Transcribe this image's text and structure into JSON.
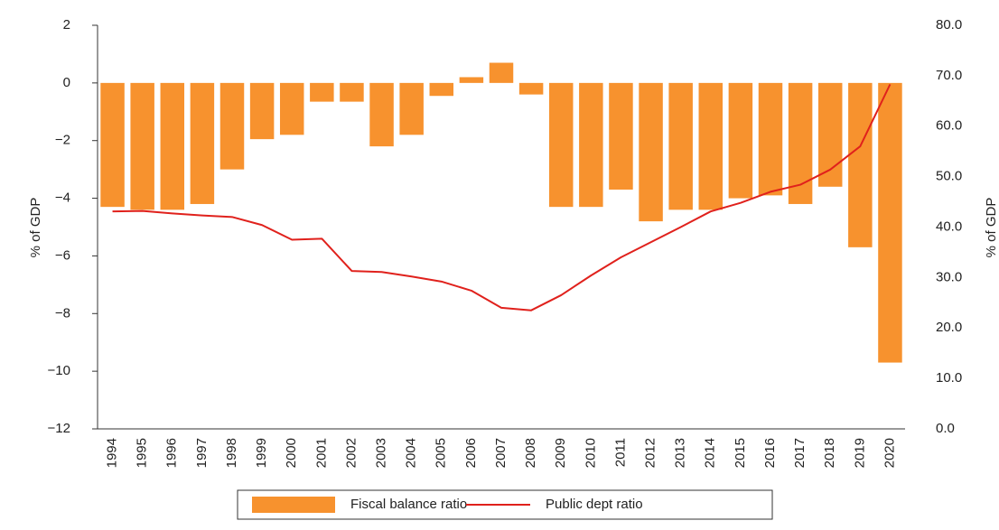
{
  "chart_data": {
    "type": "bar",
    "y_label": "% of GDP",
    "y2_label": "% of GDP",
    "categories": [
      "1994",
      "1995",
      "1996",
      "1997",
      "1998",
      "1999",
      "2000",
      "2001",
      "2002",
      "2003",
      "2004",
      "2005",
      "2006",
      "2007",
      "2008",
      "2009",
      "2010",
      "2011",
      "2012",
      "2013",
      "2014",
      "2015",
      "2016",
      "2017",
      "2018",
      "2019",
      "2020"
    ],
    "series": [
      {
        "name": "Fiscal balance ratio",
        "type": "bar",
        "color": "#f7922e",
        "values": [
          -4.3,
          -4.4,
          -4.4,
          -4.2,
          -3.0,
          -1.95,
          -1.8,
          -0.65,
          -0.65,
          -2.2,
          -1.8,
          -0.45,
          0.2,
          0.7,
          -0.4,
          -4.3,
          -4.3,
          -3.7,
          -4.8,
          -4.4,
          -4.4,
          -4.0,
          -3.9,
          -4.2,
          -3.6,
          -5.7,
          -9.7
        ]
      },
      {
        "name": "Public dept ratio",
        "type": "line",
        "axis": "y2",
        "color": "#e0211c",
        "values": [
          43.1,
          43.2,
          42.7,
          42.3,
          42.0,
          40.4,
          37.5,
          37.7,
          31.3,
          31.1,
          30.2,
          29.2,
          27.4,
          24.0,
          23.5,
          26.5,
          30.4,
          34.0,
          37.0,
          40.0,
          43.1,
          44.8,
          47.0,
          48.4,
          51.4,
          56.0,
          68.3
        ]
      }
    ],
    "ylim": [
      -12,
      2
    ],
    "yticks": [
      {
        "value": -12,
        "label": "−12"
      },
      {
        "value": -10,
        "label": "−10"
      },
      {
        "value": -8,
        "label": "−8"
      },
      {
        "value": -6,
        "label": "−6"
      },
      {
        "value": -4,
        "label": "−4"
      },
      {
        "value": -2,
        "label": "−2"
      },
      0,
      2
    ],
    "y2lim": [
      0,
      80
    ],
    "y2ticks": [
      {
        "value": 0,
        "label": "0.0"
      },
      {
        "value": 10,
        "label": "10.0"
      },
      {
        "value": 20,
        "label": "20.0"
      },
      {
        "value": 30,
        "label": "30.0"
      },
      {
        "value": 40,
        "label": "40.0"
      },
      {
        "value": 50,
        "label": "50.0"
      },
      {
        "value": 60,
        "label": "60.0"
      },
      {
        "value": 70,
        "label": "70.0"
      },
      {
        "value": 80,
        "label": "80.0"
      }
    ],
    "legend": "bottom"
  }
}
